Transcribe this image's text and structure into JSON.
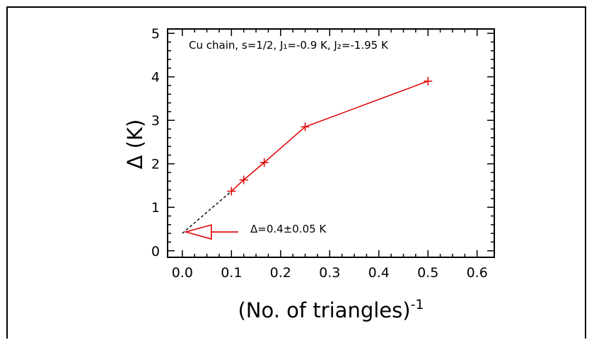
{
  "chart_data": {
    "type": "line",
    "title": "",
    "xlabel": "(No. of triangles)",
    "xlabel_sup": "-1",
    "ylabel": "Δ (K)",
    "xlim": [
      -0.03,
      0.635
    ],
    "ylim": [
      -0.15,
      5.1
    ],
    "x_ticks": [
      "0.0",
      "0.1",
      "0.2",
      "0.3",
      "0.4",
      "0.5",
      "0.6"
    ],
    "y_ticks": [
      "0",
      "1",
      "2",
      "3",
      "4",
      "5"
    ],
    "grid": false,
    "colors": {
      "series": "#e00000",
      "extrapolation": "#000000",
      "arrow": "#e00000"
    },
    "series": [
      {
        "x": [
          0.1,
          0.125,
          0.1667,
          0.25,
          0.5
        ],
        "y": [
          1.37,
          1.63,
          2.03,
          2.85,
          3.9
        ]
      }
    ],
    "extrapolation": {
      "x": [
        0.0,
        0.1
      ],
      "y": [
        0.4,
        1.37
      ]
    },
    "annotations": {
      "legend": "Cu chain, s=1/2, J₁=-0.9 K, J₂=-1.95 K",
      "gap_label": "Δ=0.4±0.05 K",
      "gap_value": 0.4
    }
  }
}
